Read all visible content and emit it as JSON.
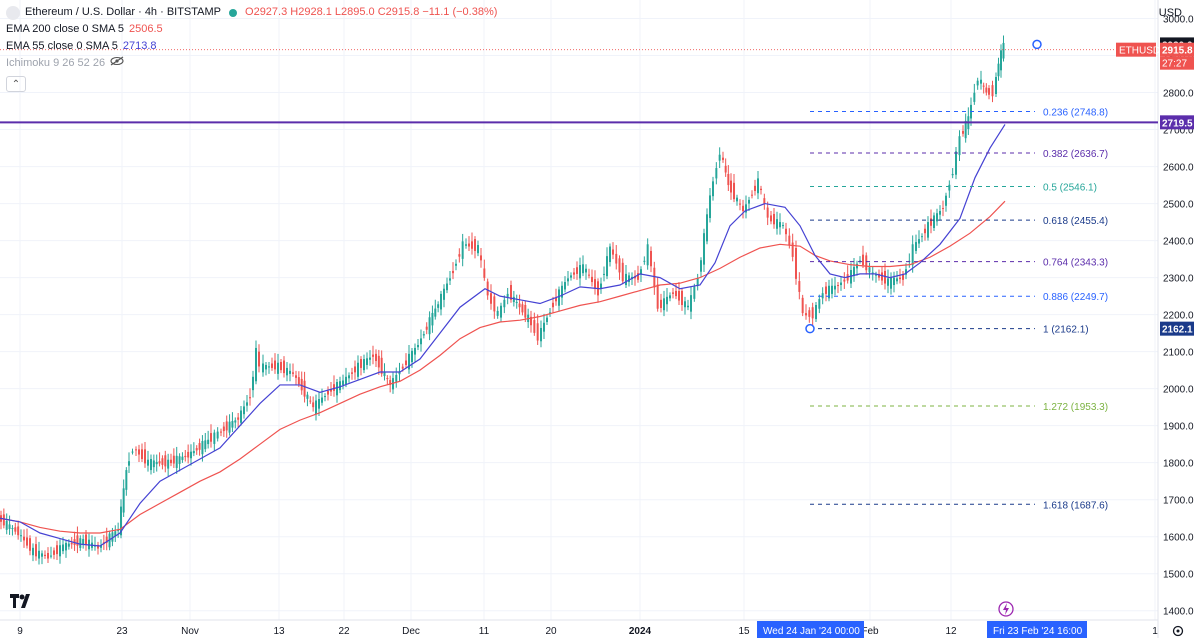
{
  "header": {
    "symbol_title": "Ethereum / U.S. Dollar · 4h · BITSTAMP",
    "ohlc": "O2927.3 H2928.1 L2895.0 C2915.8 −11.1 (−0.38%)",
    "ema200_label": "EMA 200 close 0 SMA 5",
    "ema200_value": "2506.5",
    "ema55_label": "EMA 55 close 0 SMA 5",
    "ema55_value": "2713.8",
    "ichimoku_label": "Ichimoku 9 26 52 26"
  },
  "currency": "USD",
  "colors": {
    "up": "#26a69a",
    "down": "#ef5350",
    "ema200": "#ef5350",
    "ema55": "#4542d3",
    "hline": "#5b2dab",
    "accent": "#2962ff"
  },
  "chart_data": {
    "type": "line",
    "x_ticks": [
      "9",
      "23",
      "Nov",
      "13",
      "22",
      "Dec",
      "11",
      "20",
      "2024",
      "15",
      "Wed 24 Jan '24   00:00",
      "Feb",
      "12",
      "Fri 23 Feb '24   16:00",
      "1"
    ],
    "y_ticks": [
      1400,
      1500,
      1600,
      1700,
      1800,
      1900,
      2000,
      2100,
      2200,
      2300,
      2400,
      2500,
      2600,
      2700,
      2800,
      2900,
      3000
    ],
    "ylim": [
      1375,
      3050
    ],
    "price_path": [
      [
        0,
        1650
      ],
      [
        20,
        1610
      ],
      [
        35,
        1560
      ],
      [
        50,
        1545
      ],
      [
        65,
        1575
      ],
      [
        85,
        1590
      ],
      [
        100,
        1570
      ],
      [
        120,
        1620
      ],
      [
        128,
        1780
      ],
      [
        135,
        1840
      ],
      [
        150,
        1800
      ],
      [
        170,
        1800
      ],
      [
        190,
        1820
      ],
      [
        210,
        1860
      ],
      [
        220,
        1880
      ],
      [
        240,
        1920
      ],
      [
        252,
        1980
      ],
      [
        258,
        2100
      ],
      [
        262,
        2060
      ],
      [
        280,
        2060
      ],
      [
        295,
        2040
      ],
      [
        315,
        1950
      ],
      [
        330,
        1990
      ],
      [
        345,
        2020
      ],
      [
        360,
        2060
      ],
      [
        375,
        2090
      ],
      [
        392,
        2010
      ],
      [
        405,
        2060
      ],
      [
        420,
        2120
      ],
      [
        440,
        2230
      ],
      [
        455,
        2320
      ],
      [
        465,
        2390
      ],
      [
        480,
        2380
      ],
      [
        490,
        2250
      ],
      [
        500,
        2200
      ],
      [
        510,
        2260
      ],
      [
        530,
        2190
      ],
      [
        540,
        2140
      ],
      [
        555,
        2230
      ],
      [
        570,
        2300
      ],
      [
        585,
        2330
      ],
      [
        600,
        2260
      ],
      [
        612,
        2380
      ],
      [
        625,
        2300
      ],
      [
        640,
        2300
      ],
      [
        650,
        2380
      ],
      [
        660,
        2220
      ],
      [
        675,
        2260
      ],
      [
        690,
        2220
      ],
      [
        700,
        2300
      ],
      [
        712,
        2520
      ],
      [
        722,
        2640
      ],
      [
        730,
        2550
      ],
      [
        745,
        2480
      ],
      [
        760,
        2560
      ],
      [
        770,
        2460
      ],
      [
        785,
        2440
      ],
      [
        795,
        2360
      ],
      [
        805,
        2200
      ],
      [
        815,
        2200
      ],
      [
        825,
        2260
      ],
      [
        840,
        2280
      ],
      [
        850,
        2300
      ],
      [
        862,
        2350
      ],
      [
        875,
        2310
      ],
      [
        890,
        2290
      ],
      [
        905,
        2300
      ],
      [
        915,
        2380
      ],
      [
        930,
        2440
      ],
      [
        945,
        2490
      ],
      [
        955,
        2590
      ],
      [
        962,
        2680
      ],
      [
        970,
        2730
      ],
      [
        980,
        2840
      ],
      [
        988,
        2800
      ],
      [
        995,
        2800
      ],
      [
        1000,
        2880
      ],
      [
        1005,
        2928
      ]
    ],
    "ema55": [
      [
        0,
        1650
      ],
      [
        20,
        1640
      ],
      [
        40,
        1610
      ],
      [
        60,
        1595
      ],
      [
        80,
        1580
      ],
      [
        100,
        1575
      ],
      [
        120,
        1610
      ],
      [
        140,
        1690
      ],
      [
        160,
        1750
      ],
      [
        180,
        1780
      ],
      [
        200,
        1810
      ],
      [
        220,
        1840
      ],
      [
        240,
        1900
      ],
      [
        260,
        1960
      ],
      [
        280,
        2010
      ],
      [
        300,
        2010
      ],
      [
        320,
        1990
      ],
      [
        340,
        2005
      ],
      [
        360,
        2025
      ],
      [
        380,
        2045
      ],
      [
        400,
        2045
      ],
      [
        420,
        2080
      ],
      [
        440,
        2150
      ],
      [
        460,
        2220
      ],
      [
        485,
        2270
      ],
      [
        500,
        2250
      ],
      [
        520,
        2240
      ],
      [
        540,
        2230
      ],
      [
        560,
        2250
      ],
      [
        580,
        2275
      ],
      [
        600,
        2270
      ],
      [
        620,
        2280
      ],
      [
        640,
        2310
      ],
      [
        660,
        2300
      ],
      [
        680,
        2270
      ],
      [
        700,
        2280
      ],
      [
        715,
        2340
      ],
      [
        730,
        2440
      ],
      [
        745,
        2480
      ],
      [
        765,
        2500
      ],
      [
        785,
        2490
      ],
      [
        800,
        2440
      ],
      [
        815,
        2360
      ],
      [
        830,
        2310
      ],
      [
        845,
        2300
      ],
      [
        860,
        2310
      ],
      [
        875,
        2310
      ],
      [
        890,
        2300
      ],
      [
        905,
        2310
      ],
      [
        920,
        2340
      ],
      [
        940,
        2390
      ],
      [
        960,
        2460
      ],
      [
        975,
        2570
      ],
      [
        990,
        2650
      ],
      [
        1005,
        2713.8
      ]
    ],
    "ema200": [
      [
        0,
        1650
      ],
      [
        20,
        1640
      ],
      [
        40,
        1625
      ],
      [
        60,
        1615
      ],
      [
        80,
        1610
      ],
      [
        100,
        1610
      ],
      [
        120,
        1620
      ],
      [
        140,
        1660
      ],
      [
        160,
        1690
      ],
      [
        180,
        1720
      ],
      [
        200,
        1750
      ],
      [
        220,
        1775
      ],
      [
        240,
        1810
      ],
      [
        260,
        1850
      ],
      [
        280,
        1890
      ],
      [
        300,
        1915
      ],
      [
        320,
        1935
      ],
      [
        340,
        1960
      ],
      [
        360,
        1985
      ],
      [
        380,
        2005
      ],
      [
        400,
        2020
      ],
      [
        420,
        2050
      ],
      [
        440,
        2090
      ],
      [
        460,
        2135
      ],
      [
        480,
        2165
      ],
      [
        500,
        2180
      ],
      [
        520,
        2185
      ],
      [
        540,
        2195
      ],
      [
        560,
        2210
      ],
      [
        580,
        2225
      ],
      [
        600,
        2235
      ],
      [
        620,
        2250
      ],
      [
        640,
        2265
      ],
      [
        660,
        2280
      ],
      [
        680,
        2285
      ],
      [
        700,
        2300
      ],
      [
        720,
        2325
      ],
      [
        740,
        2355
      ],
      [
        760,
        2380
      ],
      [
        780,
        2390
      ],
      [
        800,
        2385
      ],
      [
        815,
        2360
      ],
      [
        830,
        2345
      ],
      [
        850,
        2335
      ],
      [
        870,
        2330
      ],
      [
        890,
        2330
      ],
      [
        910,
        2335
      ],
      [
        930,
        2355
      ],
      [
        950,
        2385
      ],
      [
        970,
        2420
      ],
      [
        990,
        2465
      ],
      [
        1005,
        2506.5
      ]
    ],
    "fib_levels": [
      {
        "ratio": "0.236",
        "value": 2748.8,
        "color": "#2962ff"
      },
      {
        "ratio": "0.382",
        "value": 2636.7,
        "color": "#5b2dab"
      },
      {
        "ratio": "0.5",
        "value": 2546.1,
        "color": "#26a69a"
      },
      {
        "ratio": "0.618",
        "value": 2455.4,
        "color": "#1a3a8a"
      },
      {
        "ratio": "0.764",
        "value": 2343.3,
        "color": "#5b2dab"
      },
      {
        "ratio": "0.886",
        "value": 2249.7,
        "color": "#2962ff"
      },
      {
        "ratio": "1",
        "value": 2162.1,
        "color": "#1a3a8a"
      },
      {
        "ratio": "1.272",
        "value": 1953.3,
        "color": "#7cb342"
      },
      {
        "ratio": "1.618",
        "value": 1687.6,
        "color": "#1a3a8a"
      }
    ],
    "horizontal_line": 2719.5,
    "price_labels": {
      "high": "2930.0",
      "last": "2915.8",
      "countdown": "27:27",
      "symbol": "ETHUSD",
      "hline": "2719.5",
      "fib_anchor": "2162.1"
    }
  }
}
